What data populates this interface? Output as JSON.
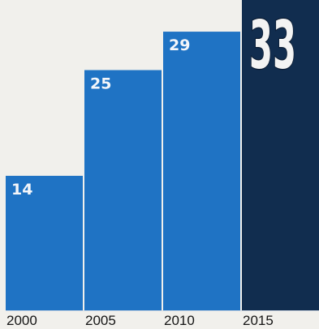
{
  "chart_data": {
    "type": "bar",
    "title": "",
    "xlabel": "",
    "ylabel": "",
    "categories": [
      "2000",
      "2005",
      "2010",
      "2015"
    ],
    "values": [
      14,
      25,
      29,
      33
    ],
    "value_labels": [
      "14",
      "25",
      "29",
      "33"
    ],
    "highlight_index": 3,
    "ylim": [
      0,
      35
    ],
    "grid": false,
    "legend": "none",
    "colors": {
      "bar": "#1f73c4",
      "highlight_bar": "#112d4f",
      "value_text": "#f4f6fa",
      "highlight_text_fill": "#f3f3f3",
      "highlight_text_outline": "#0b1c33",
      "axis_text": "#151515",
      "baseline": "#cfd8e3",
      "background": "#f1f0ec"
    }
  }
}
